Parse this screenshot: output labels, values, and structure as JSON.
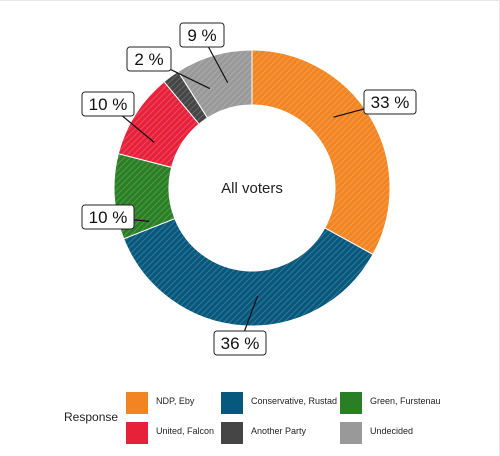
{
  "chart_data": {
    "type": "pie",
    "style": "donut",
    "center_label": "All voters",
    "slices": [
      {
        "name": "NDP, Eby",
        "value": 33,
        "label": "33 %",
        "color": "#F28522"
      },
      {
        "name": "Conservative, Rustad",
        "value": 36,
        "label": "36 %",
        "color": "#07587D"
      },
      {
        "name": "Green, Furstenau",
        "value": 10,
        "label": "10 %",
        "color": "#2A7F25"
      },
      {
        "name": "United, Falcon",
        "value": 10,
        "label": "10 %",
        "color": "#E8213B"
      },
      {
        "name": "Another Party",
        "value": 2,
        "label": "2 %",
        "color": "#454545"
      },
      {
        "name": "Undecided",
        "value": 9,
        "label": "9 %",
        "color": "#999999"
      }
    ],
    "legend_title": "Response",
    "legend_position": "bottom"
  }
}
